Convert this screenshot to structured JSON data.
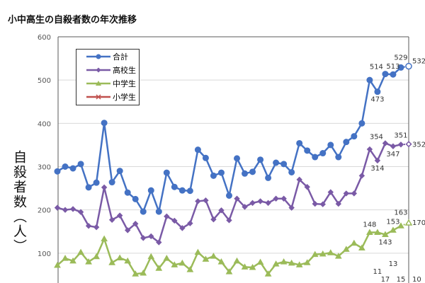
{
  "chart_data": {
    "type": "line",
    "title": "小中高生の自殺者数の年次推移",
    "ylabel": "自殺者数（人）",
    "xlabel": "",
    "ylim": [
      0,
      600
    ],
    "yticks": [
      100,
      200,
      300,
      400,
      500,
      600
    ],
    "grid": true,
    "legend_position": "top-left",
    "series": [
      {
        "name": "合計",
        "color": "#4472c4",
        "marker": "circle",
        "values": [
          289,
          300,
          296,
          306,
          252,
          263,
          401,
          264,
          290,
          240,
          225,
          196,
          245,
          196,
          286,
          253,
          245,
          244,
          339,
          320,
          279,
          286,
          233,
          319,
          284,
          288,
          316,
          274,
          309,
          306,
          287,
          354,
          337,
          322,
          331,
          350,
          322,
          357,
          370,
          400,
          500,
          473,
          514,
          513,
          529,
          532
        ],
        "labels": {
          "41": "473",
          "42": "514",
          "43": "513",
          "44": "529",
          "45": "532"
        }
      },
      {
        "name": "高校生",
        "color": "#7a5aa6",
        "marker": "diamond",
        "values": [
          205,
          200,
          202,
          195,
          163,
          160,
          252,
          177,
          187,
          153,
          168,
          135,
          139,
          125,
          185,
          175,
          158,
          169,
          220,
          222,
          178,
          199,
          176,
          226,
          207,
          216,
          220,
          216,
          226,
          226,
          205,
          270,
          253,
          214,
          213,
          241,
          214,
          238,
          238,
          279,
          340,
          314,
          354,
          347,
          351,
          352
        ],
        "labels": {
          "41": "314",
          "42": "354",
          "43": "347",
          "44": "351",
          "45": "352"
        }
      },
      {
        "name": "中学生",
        "color": "#9bbb59",
        "marker": "triangle",
        "values": [
          72,
          88,
          82,
          102,
          80,
          92,
          133,
          78,
          89,
          82,
          52,
          54,
          92,
          65,
          88,
          73,
          77,
          62,
          102,
          86,
          93,
          80,
          57,
          82,
          68,
          67,
          79,
          52,
          75,
          80,
          77,
          73,
          78,
          97,
          98,
          101,
          93,
          109,
          123,
          112,
          148,
          148,
          143,
          153,
          163,
          170
        ],
        "labels": {
          "40": "148",
          "42": "143",
          "43": "153",
          "44": "163",
          "45": "170"
        }
      },
      {
        "name": "小学生",
        "color": "#c0504d",
        "marker": "x",
        "values": [
          null,
          null,
          null,
          null,
          null,
          null,
          null,
          null,
          null,
          null,
          null,
          null,
          null,
          null,
          null,
          null,
          null,
          null,
          null,
          null,
          null,
          null,
          null,
          null,
          null,
          null,
          null,
          null,
          null,
          null,
          null,
          null,
          null,
          null,
          null,
          null,
          null,
          null,
          null,
          null,
          null,
          11,
          17,
          13,
          15,
          10
        ],
        "labels": {
          "41": "11",
          "42": "17",
          "43": "13",
          "44": "15",
          "45": "10"
        }
      }
    ]
  }
}
